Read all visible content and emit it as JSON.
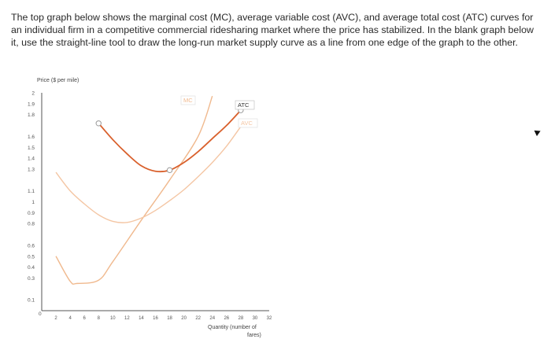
{
  "instructions": "The top graph below shows the marginal cost (MC), average variable cost (AVC), and average total cost (ATC) curves for an individual firm in a competitive commercial ridesharing market where the price has stabilized. In the blank graph below it, use the straight-line tool to draw the long-run market supply curve as a line from one edge of the graph to the other.",
  "chart_data": {
    "type": "line",
    "ylabel": "Price ($ per mile)",
    "xlabel_line1": "Quantity (number of",
    "xlabel_line2": "fares)",
    "origin_label": "0",
    "xlim": [
      0,
      32
    ],
    "ylim": [
      0,
      2
    ],
    "y_ticks": [
      0.1,
      0.3,
      0.4,
      0.5,
      0.6,
      0.8,
      0.9,
      1,
      1.1,
      1.3,
      1.4,
      1.5,
      1.6,
      1.8,
      1.9,
      2
    ],
    "y_tick_labels": [
      "0.1",
      "0.3",
      "0.4",
      "0.5",
      "0.6",
      "0.8",
      "0.9",
      "1",
      "1.1",
      "1.3",
      "1.4",
      "1.5",
      "1.6",
      "1.8",
      "1.9",
      "2"
    ],
    "x_ticks": [
      2,
      4,
      6,
      8,
      10,
      12,
      14,
      16,
      18,
      20,
      22,
      24,
      26,
      28,
      30,
      32
    ],
    "x_tick_labels": [
      "2",
      "4",
      "6",
      "8",
      "10",
      "12",
      "14",
      "16",
      "18",
      "20",
      "22",
      "24",
      "26",
      "28",
      "30",
      "32"
    ],
    "colors": {
      "MC": "#f0b98e",
      "ATC": "#d9602c",
      "AVC": "#f4c6a4",
      "axis": "#555555",
      "tick_text": "#555555"
    },
    "series": [
      {
        "name": "MC",
        "points": [
          [
            2,
            0.5
          ],
          [
            4,
            0.27
          ],
          [
            5,
            0.25
          ],
          [
            8,
            0.28
          ],
          [
            10,
            0.45
          ],
          [
            14,
            0.83
          ],
          [
            18,
            1.2
          ],
          [
            22,
            1.6
          ],
          [
            24,
            1.97
          ]
        ]
      },
      {
        "name": "ATC",
        "points": [
          [
            8,
            1.72
          ],
          [
            10,
            1.57
          ],
          [
            12,
            1.44
          ],
          [
            14,
            1.33
          ],
          [
            16,
            1.28
          ],
          [
            18,
            1.29
          ],
          [
            20,
            1.36
          ],
          [
            22,
            1.46
          ],
          [
            24,
            1.58
          ],
          [
            26,
            1.7
          ],
          [
            28,
            1.84
          ]
        ]
      },
      {
        "name": "AVC",
        "points": [
          [
            2,
            1.27
          ],
          [
            4,
            1.1
          ],
          [
            6,
            0.98
          ],
          [
            8,
            0.88
          ],
          [
            10,
            0.82
          ],
          [
            12,
            0.81
          ],
          [
            14,
            0.85
          ],
          [
            16,
            0.92
          ],
          [
            18,
            1.01
          ],
          [
            20,
            1.11
          ],
          [
            22,
            1.23
          ],
          [
            24,
            1.36
          ],
          [
            26,
            1.51
          ],
          [
            28,
            1.69
          ]
        ]
      }
    ],
    "markers": [
      {
        "series": "ATC",
        "x": 8,
        "y": 1.72
      },
      {
        "series": "ATC",
        "x": 18,
        "y": 1.29
      },
      {
        "series": "ATC",
        "x": 28,
        "y": 1.84
      }
    ],
    "curve_labels": [
      {
        "name": "MC",
        "text": "MC"
      },
      {
        "name": "ATC",
        "text": "ATC"
      },
      {
        "name": "AVC",
        "text": "AVC"
      }
    ]
  }
}
